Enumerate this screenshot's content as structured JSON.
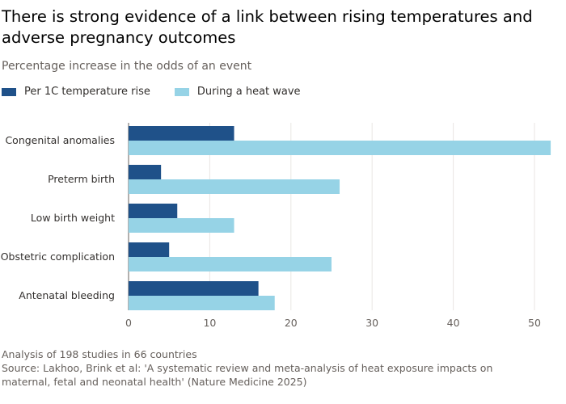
{
  "title": "There is strong evidence of a link between rising temperatures and adverse pregnancy outcomes",
  "subtitle": "Percentage increase in the odds of an event",
  "footer": {
    "note": "Analysis of 198 studies in 66 countries",
    "source": "Source: Lakhoo, Brink et al: 'A systematic review and meta-analysis of heat exposure impacts on maternal, fetal and neonatal health' (Nature Medicine 2025)"
  },
  "chart_data": {
    "type": "bar",
    "orientation": "horizontal",
    "categories": [
      "Congenital anomalies",
      "Preterm birth",
      "Low birth weight",
      "Obstetric complication",
      "Antenatal bleeding"
    ],
    "series": [
      {
        "name": "Per 1C temperature rise",
        "color": "#1f5189",
        "values": [
          13,
          4,
          6,
          5,
          16
        ]
      },
      {
        "name": "During a heat wave",
        "color": "#96d3e6",
        "values": [
          52,
          26,
          13,
          25,
          18
        ]
      }
    ],
    "xlim": [
      0,
      52
    ],
    "xticks": [
      0,
      10,
      20,
      30,
      40,
      50
    ],
    "grid": true,
    "legend": "top-left"
  }
}
